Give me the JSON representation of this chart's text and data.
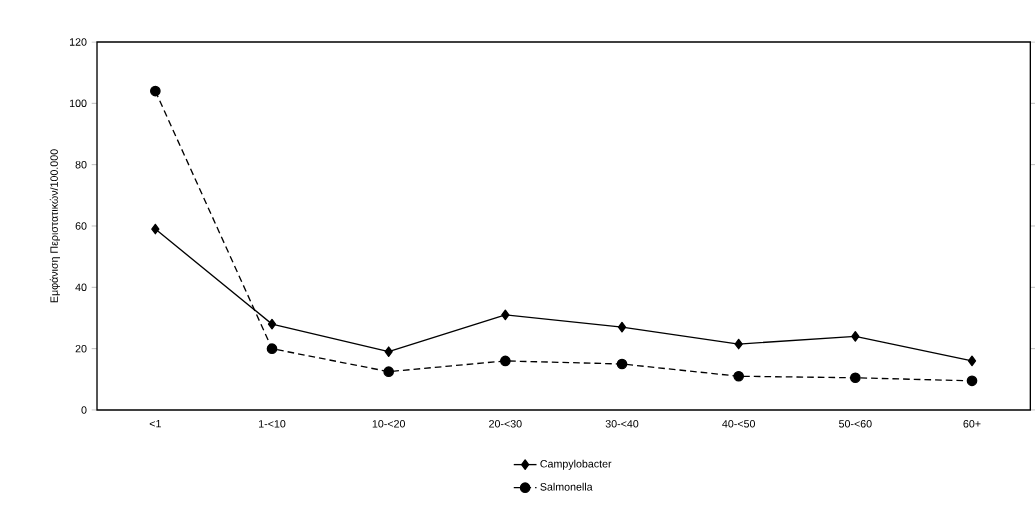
{
  "chart_data": {
    "type": "line",
    "ylabel": "Εμφάνιση Περιστατικών/100.000",
    "categories": [
      "<1",
      "1-<10",
      "10-<20",
      "20-<30",
      "30-<40",
      "40-<50",
      "50-<60",
      "60+"
    ],
    "series": [
      {
        "name": "Campylobacter",
        "color": "#000000",
        "marker": "diamond",
        "line_style": "solid",
        "values": [
          59,
          28,
          19,
          31,
          27,
          21.5,
          24,
          16
        ]
      },
      {
        "name": "Salmonella",
        "color": "#000000",
        "marker": "circle",
        "line_style": "dashed",
        "values": [
          104,
          20,
          12.5,
          16,
          15,
          11,
          10.5,
          9.5
        ]
      }
    ],
    "ylim": [
      0,
      120
    ],
    "yticks": [
      0,
      20,
      40,
      60,
      80,
      100,
      120
    ],
    "legend": "bottom"
  }
}
